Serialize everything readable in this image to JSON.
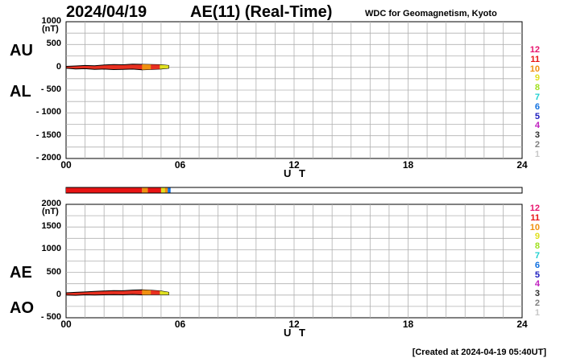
{
  "header": {
    "date": "2024/04/19",
    "title": "AE(11) (Real-Time)",
    "source": "WDC for Geomagnetism, Kyoto",
    "created": "[Created at 2024-04-19 05:40UT]"
  },
  "legend": [
    {
      "label": "12",
      "color": "#e8156e"
    },
    {
      "label": "11",
      "color": "#e81414"
    },
    {
      "label": "10",
      "color": "#f09010"
    },
    {
      "label": "9",
      "color": "#e0e020"
    },
    {
      "label": "8",
      "color": "#a0e020"
    },
    {
      "label": "7",
      "color": "#20d0d0"
    },
    {
      "label": "6",
      "color": "#1070e0"
    },
    {
      "label": "5",
      "color": "#2020c0"
    },
    {
      "label": "4",
      "color": "#c020c0"
    },
    {
      "label": "3",
      "color": "#303030"
    },
    {
      "label": "2",
      "color": "#808080"
    },
    {
      "label": "1",
      "color": "#c8c8c8"
    }
  ],
  "chart_data": [
    {
      "type": "area",
      "name": "AU/AL",
      "labels": {
        "upper": "AU",
        "lower": "AL"
      },
      "ylabel": "(nT)",
      "xlabel": "U T",
      "ylim": [
        -2000,
        1000
      ],
      "yticks": [
        1000,
        500,
        0,
        -500,
        -1000,
        -1500,
        -2000
      ],
      "ytick_labels": [
        "1000",
        "500",
        "0",
        "- 500",
        "- 1000",
        "- 1500",
        "- 2000"
      ],
      "xlim": [
        0,
        24
      ],
      "xticks": [
        0,
        6,
        12,
        18,
        24
      ],
      "xtick_labels": [
        "00",
        "06",
        "12",
        "18",
        "24"
      ],
      "grid": true,
      "series": [
        {
          "key": "AU",
          "x": [
            0,
            0.5,
            1,
            1.5,
            2,
            2.5,
            3,
            3.5,
            4,
            4.5,
            5,
            5.4
          ],
          "values": [
            20,
            30,
            40,
            35,
            50,
            60,
            55,
            70,
            65,
            60,
            55,
            40
          ]
        },
        {
          "key": "AL",
          "x": [
            0,
            0.5,
            1,
            1.5,
            2,
            2.5,
            3,
            3.5,
            4,
            4.5,
            5,
            5.4
          ],
          "values": [
            -20,
            -35,
            -30,
            -45,
            -40,
            -50,
            -45,
            -40,
            -55,
            -45,
            -35,
            -20
          ]
        }
      ]
    },
    {
      "type": "area",
      "name": "AE/AO",
      "labels": {
        "upper": "AE",
        "lower": "AO"
      },
      "ylabel": "(nT)",
      "xlabel": "U T",
      "ylim": [
        -500,
        2000
      ],
      "yticks": [
        2000,
        1500,
        1000,
        500,
        0,
        -500
      ],
      "ytick_labels": [
        "2000",
        "1500",
        "1000",
        "500",
        "0",
        "- 500"
      ],
      "xlim": [
        0,
        24
      ],
      "xticks": [
        0,
        6,
        12,
        18,
        24
      ],
      "xtick_labels": [
        "00",
        "06",
        "12",
        "18",
        "24"
      ],
      "grid": true,
      "series": [
        {
          "key": "AE",
          "x": [
            0,
            0.5,
            1,
            1.5,
            2,
            2.5,
            3,
            3.5,
            4,
            4.5,
            5,
            5.4
          ],
          "values": [
            50,
            60,
            70,
            80,
            90,
            100,
            95,
            110,
            115,
            105,
            90,
            60
          ]
        },
        {
          "key": "AO",
          "x": [
            0,
            0.5,
            1,
            1.5,
            2,
            2.5,
            3,
            3.5,
            4,
            4.5,
            5,
            5.4
          ],
          "values": [
            0,
            -5,
            5,
            0,
            5,
            10,
            5,
            15,
            5,
            10,
            10,
            10
          ]
        }
      ]
    }
  ],
  "coverage_bar": {
    "segments": [
      {
        "from": 0,
        "to": 4.0,
        "color": "#e81414"
      },
      {
        "from": 4.0,
        "to": 4.3,
        "color": "#f09010"
      },
      {
        "from": 4.3,
        "to": 5.0,
        "color": "#e81414"
      },
      {
        "from": 5.0,
        "to": 5.2,
        "color": "#e0e020"
      },
      {
        "from": 5.2,
        "to": 5.35,
        "color": "#f09010"
      },
      {
        "from": 5.35,
        "to": 5.5,
        "color": "#1070e0"
      }
    ]
  }
}
